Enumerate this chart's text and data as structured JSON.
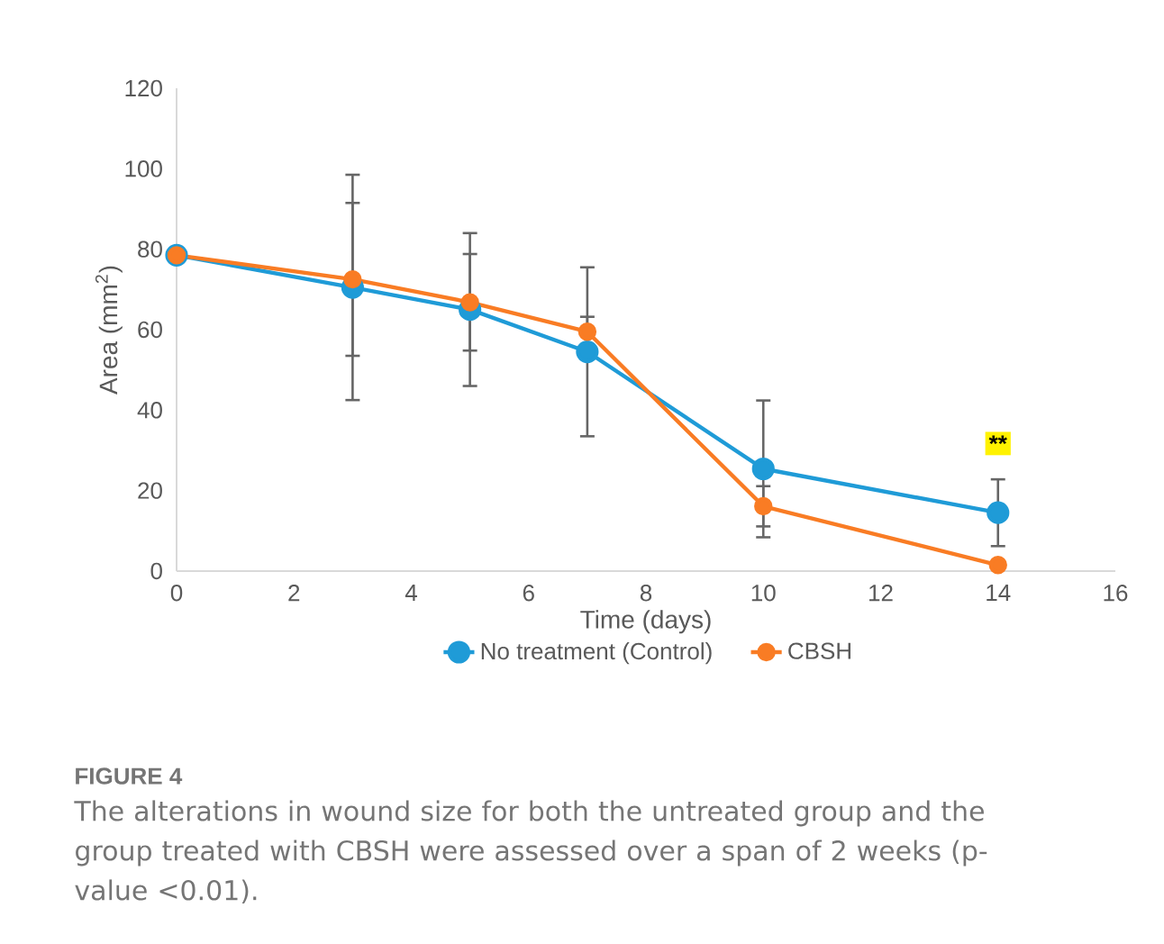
{
  "chart_data": {
    "type": "line",
    "xlabel": "Time (days)",
    "ylabel": "Area (mm$^{2}$)",
    "x": [
      0,
      3,
      5,
      7,
      10,
      14
    ],
    "series": [
      {
        "name": "No treatment (Control)",
        "color": "#1f9bd7",
        "values": [
          78.5,
          70.5,
          65,
          54.5,
          25.4,
          14.5
        ],
        "errors": [
          null,
          28,
          19,
          21,
          17,
          8.3
        ]
      },
      {
        "name": "CBSH",
        "color": "#f97c24",
        "values": [
          78.5,
          72.5,
          66.8,
          59.5,
          16.1,
          1.5
        ],
        "errors": [
          null,
          19,
          12,
          3.7,
          5,
          null
        ]
      }
    ],
    "xlim": [
      0,
      16
    ],
    "xticks": [
      0,
      2,
      4,
      6,
      8,
      10,
      12,
      14,
      16
    ],
    "ylim": [
      0,
      120
    ],
    "yticks": [
      0,
      20,
      40,
      60,
      80,
      100,
      120
    ],
    "grid": false,
    "legend": "bottom",
    "marker": "circle",
    "line_style": "solid",
    "annotations": [
      {
        "text": "**",
        "x": 14,
        "y": 31.7
      },
      "FIGURE 4",
      "The alterations in wound size for both the untreated group and the group treated with CBSH were assessed over a span of 2 weeks (p-value <0.01)."
    ]
  }
}
